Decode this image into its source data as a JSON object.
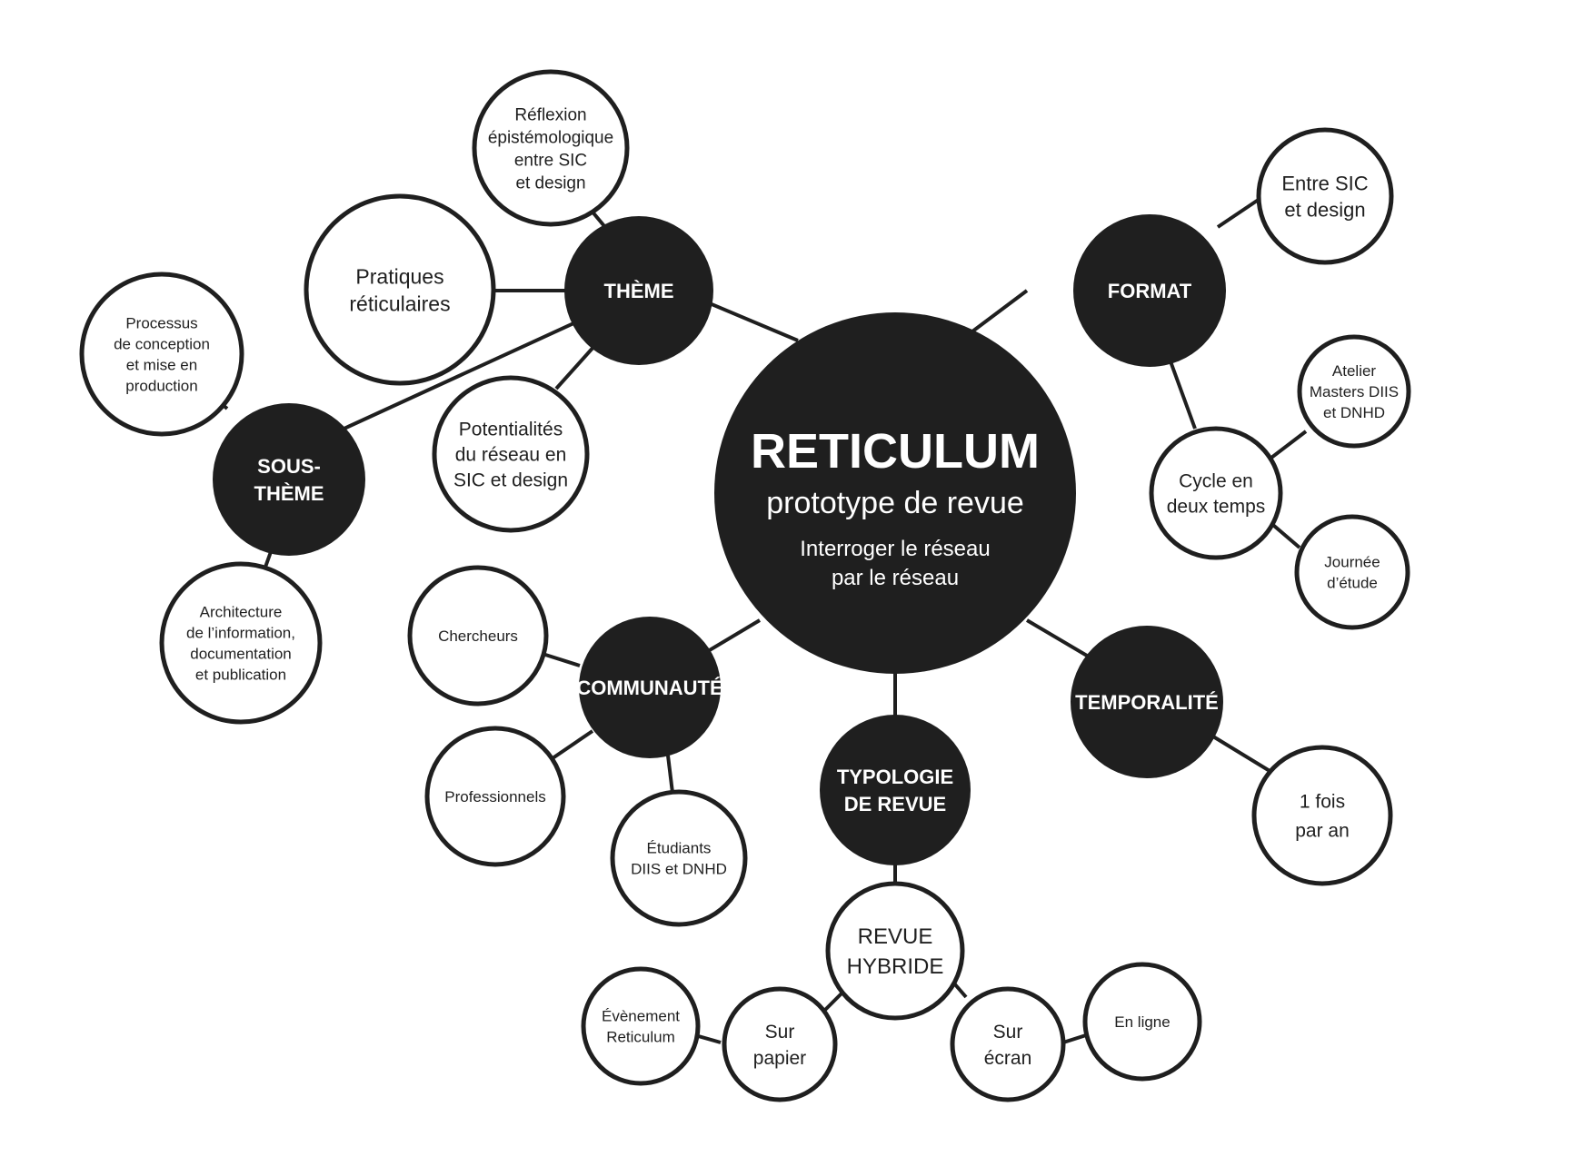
{
  "diagram": {
    "title": "RETICULUM",
    "subtitle": "prototype de revue",
    "tagline": [
      "Interroger le réseau",
      "par le réseau"
    ],
    "colors": {
      "dark": "#1f1f1f",
      "light": "#ffffff",
      "line": "#1f1f1f"
    },
    "nodes": {
      "theme": [
        "THÈME"
      ],
      "format": [
        "FORMAT"
      ],
      "sous_theme": [
        "SOUS-",
        "THÈME"
      ],
      "communaute": [
        "COMMUNAUTÉ"
      ],
      "typologie": [
        "TYPOLOGIE",
        "DE REVUE"
      ],
      "temporalite": [
        "TEMPORALITÉ"
      ],
      "reflexion": [
        "Réflexion",
        "épistémologique",
        "entre SIC",
        "et design"
      ],
      "pratiques": [
        "Pratiques",
        "réticulaires"
      ],
      "potentialites": [
        "Potentialités",
        "du réseau en",
        "SIC et design"
      ],
      "processus": [
        "Processus",
        "de conception",
        "et mise en",
        "production"
      ],
      "architecture": [
        "Architecture",
        "de l’information,",
        "documentation",
        "et publication"
      ],
      "entre_sic": [
        "Entre SIC",
        "et design"
      ],
      "cycle": [
        "Cycle en",
        "deux temps"
      ],
      "atelier": [
        "Atelier",
        "Masters DIIS",
        "et DNHD"
      ],
      "journee": [
        "Journée",
        "d’étude"
      ],
      "chercheurs": [
        "Chercheurs"
      ],
      "professionnels": [
        "Professionnels"
      ],
      "etudiants": [
        "Étudiants",
        "DIIS et DNHD"
      ],
      "une_fois": [
        "1 fois",
        "par an"
      ],
      "revue_hybride": [
        "REVUE",
        "HYBRIDE"
      ],
      "sur_papier": [
        "Sur",
        "papier"
      ],
      "sur_ecran": [
        "Sur",
        "écran"
      ],
      "evenement": [
        "Évènement",
        "Reticulum"
      ],
      "en_ligne": [
        "En ligne"
      ]
    }
  }
}
